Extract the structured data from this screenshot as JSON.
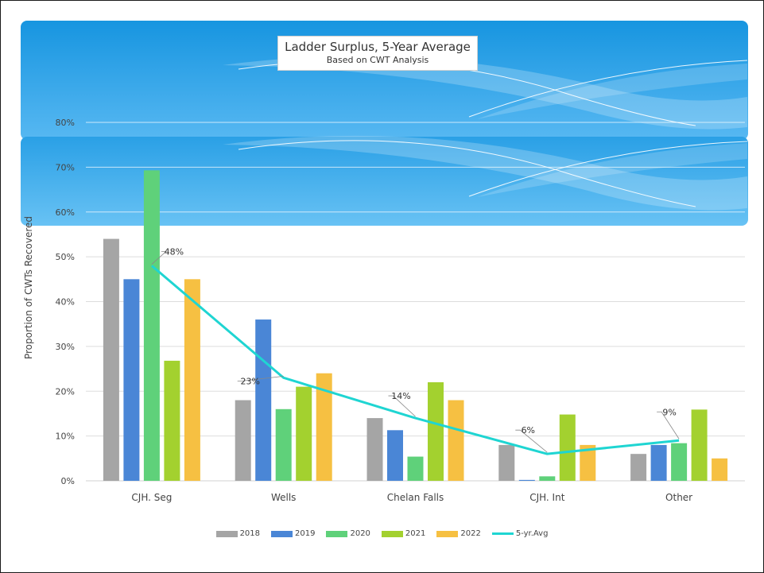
{
  "chart_data": {
    "type": "bar",
    "title": "Ladder Surplus, 5-Year Average",
    "subtitle": "Based on CWT Analysis",
    "xlabel": "",
    "ylabel": "Proportion of CWTs Recovered",
    "ylim": [
      0,
      0.8
    ],
    "yticks": [
      "0%",
      "10%",
      "20%",
      "30%",
      "40%",
      "50%",
      "60%",
      "70%",
      "80%"
    ],
    "grid": true,
    "legend_position": "bottom",
    "categories": [
      "CJH. Seg",
      "Wells",
      "Chelan Falls",
      "CJH. Int",
      "Other"
    ],
    "series": [
      {
        "name": "2018",
        "color": "#a5a5a5",
        "values": [
          0.54,
          0.18,
          0.14,
          0.08,
          0.06
        ]
      },
      {
        "name": "2019",
        "color": "#4a86d6",
        "values": [
          0.45,
          0.36,
          0.113,
          0.002,
          0.08
        ]
      },
      {
        "name": "2020",
        "color": "#5fd17a",
        "values": [
          0.693,
          0.16,
          0.054,
          0.01,
          0.084
        ]
      },
      {
        "name": "2021",
        "color": "#a3d12f",
        "values": [
          0.268,
          0.21,
          0.22,
          0.148,
          0.159
        ]
      },
      {
        "name": "2022",
        "color": "#f6c042",
        "values": [
          0.45,
          0.24,
          0.18,
          0.08,
          0.05
        ]
      }
    ],
    "line": {
      "name": "5-yr.Avg",
      "color": "#1fd5d2",
      "values": [
        0.48,
        0.23,
        0.14,
        0.06,
        0.09
      ],
      "labels": [
        "48%",
        "23%",
        "14%",
        "6%",
        "9%"
      ]
    }
  }
}
